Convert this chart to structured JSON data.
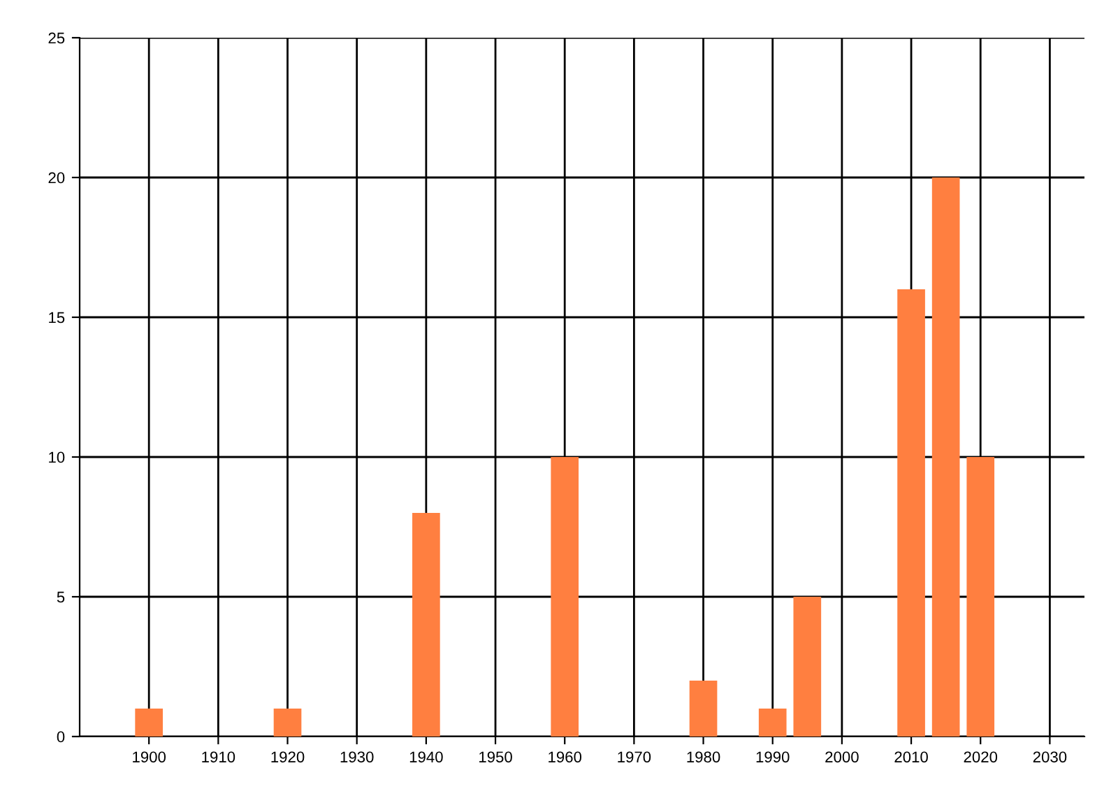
{
  "chart_data": {
    "type": "bar",
    "x": [
      1900,
      1920,
      1940,
      1960,
      1980,
      1990,
      1995,
      2010,
      2015,
      2020
    ],
    "values": [
      1,
      1,
      8,
      10,
      2,
      1,
      5,
      16,
      20,
      10
    ],
    "color": "#ff7f40",
    "xlim": [
      1890,
      2035
    ],
    "xticks": [
      1900,
      1910,
      1920,
      1930,
      1940,
      1950,
      1960,
      1970,
      1980,
      1990,
      2000,
      2010,
      2020,
      2030
    ],
    "ylim": [
      0,
      25
    ],
    "yticks": [
      0,
      5,
      10,
      15,
      20,
      25
    ],
    "grid": true,
    "legend": false
  }
}
